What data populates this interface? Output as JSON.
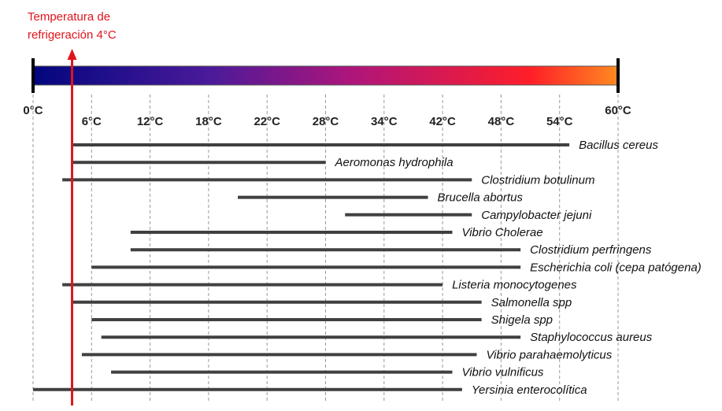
{
  "chart_data": {
    "type": "range",
    "reference": {
      "label_lines": [
        "Temperatura de",
        "refrigeración 4°C"
      ],
      "value": 4,
      "color": "#e0141b"
    },
    "xticks": [
      {
        "value": 0,
        "label": "0°C"
      },
      {
        "value": 6,
        "label": "6°C"
      },
      {
        "value": 12,
        "label": "12°C"
      },
      {
        "value": 18,
        "label": "18°C"
      },
      {
        "value": 22,
        "label": "22°C"
      },
      {
        "value": 28,
        "label": "28°C"
      },
      {
        "value": 34,
        "label": "34°C"
      },
      {
        "value": 42,
        "label": "42°C"
      },
      {
        "value": 48,
        "label": "48°C"
      },
      {
        "value": 54,
        "label": "54°C"
      },
      {
        "value": 60,
        "label": "60°C"
      }
    ],
    "xlim": [
      0,
      60
    ],
    "grid": true,
    "color": "#404040",
    "categories": [
      "Bacillus cereus",
      "Aeromonas hydrophila",
      "Clostridium botulinum",
      "Brucella abortus",
      "Campylobacter jejuni",
      "Vibrio Cholerae",
      "Clostridium perfringens",
      "Escherichia coli (cepa patógena)",
      "Listeria monocytogenes",
      "Salmonella spp",
      "Shigela spp",
      "Staphylococcus aureus",
      "Vibrio parahaemolyticus",
      "Vibrio vulnificus",
      "Yersinia enterocolítica"
    ],
    "low": [
      4,
      4,
      3,
      20,
      30,
      10,
      10,
      6,
      3,
      4,
      6,
      7,
      5,
      8,
      0
    ],
    "high": [
      55,
      28,
      45,
      40,
      45,
      43,
      50,
      50,
      42,
      46,
      46,
      50,
      45.5,
      43,
      44
    ]
  }
}
